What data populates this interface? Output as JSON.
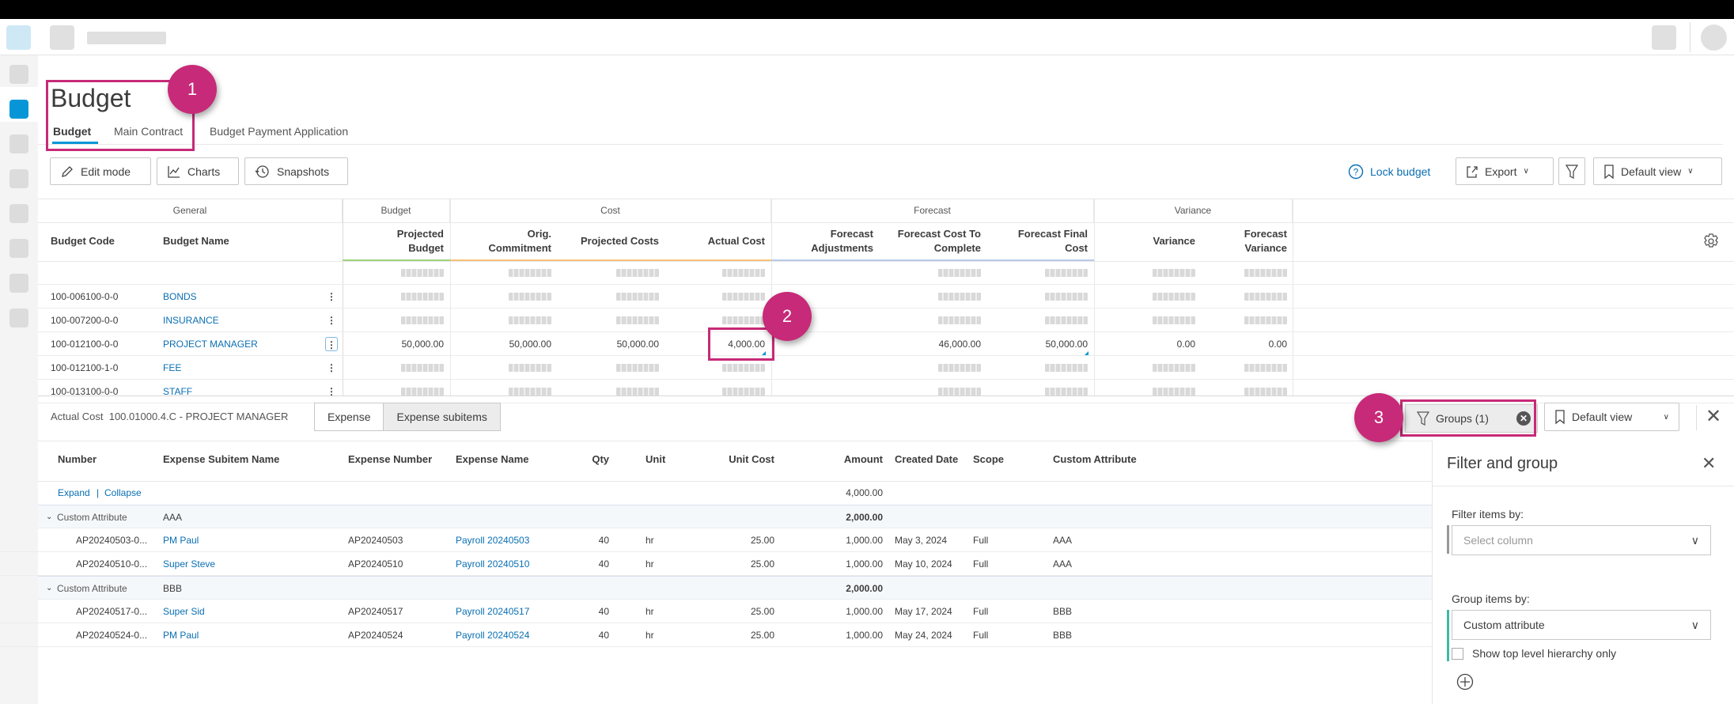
{
  "page": {
    "title": "Budget",
    "tabs": [
      "Budget",
      "Main Contract",
      "Budget Payment Application"
    ]
  },
  "toolbar": {
    "edit_mode": "Edit mode",
    "charts": "Charts",
    "snapshots": "Snapshots",
    "lock_budget": "Lock budget",
    "export": "Export",
    "default_view": "Default view"
  },
  "grid": {
    "groups": [
      "General",
      "Budget",
      "Cost",
      "Forecast",
      "Variance"
    ],
    "columns": [
      "Budget Code",
      "Budget Name",
      "Projected Budget",
      "Orig. Commitment",
      "Projected Costs",
      "Actual Cost",
      "Forecast Adjustments",
      "Forecast Cost To Complete",
      "Forecast Final Cost",
      "Variance",
      "Forecast Variance"
    ],
    "rows": [
      {
        "code": "",
        "name": "",
        "values": [
          null,
          null,
          null,
          null,
          "",
          null,
          null,
          null,
          null
        ]
      },
      {
        "code": "100-006100-0-0",
        "name": "BONDS",
        "values": [
          null,
          null,
          null,
          null,
          "",
          null,
          null,
          null,
          null
        ]
      },
      {
        "code": "100-007200-0-0",
        "name": "INSURANCE",
        "values": [
          null,
          null,
          null,
          null,
          "",
          null,
          null,
          null,
          null
        ]
      },
      {
        "code": "100-012100-0-0",
        "name": "PROJECT MANAGER",
        "values": [
          "50,000.00",
          "50,000.00",
          "50,000.00",
          "4,000.00",
          "",
          "46,000.00",
          "50,000.00",
          "0.00",
          "0.00"
        ]
      },
      {
        "code": "100-012100-1-0",
        "name": "FEE",
        "values": [
          null,
          null,
          null,
          null,
          "",
          null,
          null,
          null,
          null
        ]
      },
      {
        "code": "100-013100-0-0",
        "name": "STAFF",
        "values": [
          null,
          null,
          null,
          null,
          "",
          null,
          null,
          null,
          null
        ]
      }
    ]
  },
  "detail": {
    "label": "Actual Cost",
    "context": "100.01000.4.C - PROJECT MANAGER",
    "toggle": [
      "Expense",
      "Expense subitems"
    ],
    "groups_button": "Groups (1)",
    "default_view": "Default view",
    "columns": [
      "Number",
      "Expense Subitem Name",
      "Expense Number",
      "Expense Name",
      "Qty",
      "Unit",
      "Unit Cost",
      "Amount",
      "Created Date",
      "Scope",
      "Custom Attribute"
    ],
    "expand": "Expand",
    "collapse": "Collapse",
    "total": "4,000.00",
    "groups": [
      {
        "label": "Custom Attribute",
        "value": "AAA",
        "total": "2,000.00",
        "rows": [
          [
            "AP20240503-0...",
            "PM Paul",
            "AP20240503",
            "Payroll 20240503",
            "40",
            "hr",
            "25.00",
            "1,000.00",
            "May 3, 2024",
            "Full",
            "AAA"
          ],
          [
            "AP20240510-0...",
            "Super Steve",
            "AP20240510",
            "Payroll 20240510",
            "40",
            "hr",
            "25.00",
            "1,000.00",
            "May 10, 2024",
            "Full",
            "AAA"
          ]
        ]
      },
      {
        "label": "Custom Attribute",
        "value": "BBB",
        "total": "2,000.00",
        "rows": [
          [
            "AP20240517-0...",
            "Super Sid",
            "AP20240517",
            "Payroll 20240517",
            "40",
            "hr",
            "25.00",
            "1,000.00",
            "May 17, 2024",
            "Full",
            "BBB"
          ],
          [
            "AP20240524-0...",
            "PM Paul",
            "AP20240524",
            "Payroll 20240524",
            "40",
            "hr",
            "25.00",
            "1,000.00",
            "May 24, 2024",
            "Full",
            "BBB"
          ]
        ]
      }
    ]
  },
  "filter_panel": {
    "title": "Filter and group",
    "filter_label": "Filter items by:",
    "filter_placeholder": "Select column",
    "group_label": "Group items by:",
    "group_value": "Custom attribute",
    "checkbox_label": "Show top level hierarchy only"
  },
  "annotations": [
    "1",
    "2",
    "3"
  ],
  "colors": {
    "accent": "#0696d7",
    "link": "#0a6fb3",
    "annotation": "#c72a78"
  }
}
